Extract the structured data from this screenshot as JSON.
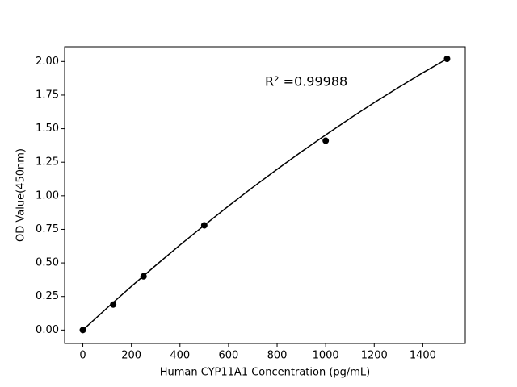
{
  "chart_data": {
    "type": "scatter",
    "xlabel": "Human CYP11A1 Concentration (pg/mL)",
    "ylabel": "OD Value(450nm)",
    "annotation": "R² =0.99988",
    "xlim": [
      -75,
      1575
    ],
    "ylim": [
      -0.1,
      2.11
    ],
    "xticks": [
      0,
      200,
      400,
      600,
      800,
      1000,
      1200,
      1400
    ],
    "yticks": [
      {
        "value": 0,
        "label": "0.00"
      },
      {
        "value": 0.25,
        "label": "0.25"
      },
      {
        "value": 0.5,
        "label": "0.50"
      },
      {
        "value": 0.75,
        "label": "0.75"
      },
      {
        "value": 1,
        "label": "1.00"
      },
      {
        "value": 1.25,
        "label": "1.25"
      },
      {
        "value": 1.5,
        "label": "1.50"
      },
      {
        "value": 1.75,
        "label": "1.75"
      },
      {
        "value": 2,
        "label": "2.00"
      }
    ],
    "series": [
      {
        "type": "scatter",
        "color": "#000000",
        "x": [
          0,
          125,
          250,
          500,
          1000,
          1500
        ],
        "values": [
          0.0,
          0.19,
          0.4,
          0.78,
          1.41,
          2.02
        ]
      },
      {
        "type": "line",
        "color": "#000000",
        "x": [
          0,
          100,
          200,
          300,
          400,
          500,
          600,
          700,
          800,
          900,
          1000,
          1100,
          1200,
          1300,
          1400,
          1500
        ],
        "values": [
          0,
          0.165,
          0.325,
          0.481,
          0.633,
          0.78,
          0.924,
          1.063,
          1.197,
          1.328,
          1.453,
          1.576,
          1.694,
          1.807,
          1.916,
          2.02
        ]
      }
    ]
  }
}
